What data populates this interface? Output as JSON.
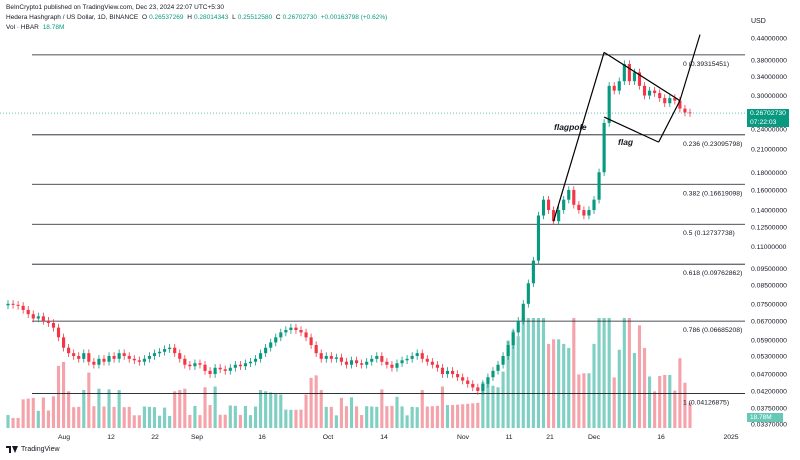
{
  "header": {
    "publisher": "BeInCrypto1 published on TradingView.com, Dec 23, 2024 22:07 UTC+5:30",
    "symbol": "Hedera Hashgraph / US Dollar, 1D, BINANCE",
    "ohlc": {
      "o_label": "O",
      "o": "0.26537269",
      "h_label": "H",
      "h": "0.28014343",
      "l_label": "L",
      "l": "0.25512580",
      "c_label": "C",
      "c": "0.26702730",
      "change": "+0.00163798 (+0.62%)"
    },
    "vol_label": "Vol · HBAR",
    "vol_value": "18.78M"
  },
  "axis": {
    "currency": "USD",
    "price_ticks": [
      "0.44000000",
      "0.38000000",
      "0.34000000",
      "0.30000000",
      "0.24000000",
      "0.21000000",
      "0.18000000",
      "0.16000000",
      "0.14000000",
      "0.12500000",
      "0.11000000",
      "0.09500000",
      "0.08500000",
      "0.07500000",
      "0.06700000",
      "0.05900000",
      "0.05300000",
      "0.04700000",
      "0.04200000",
      "0.03750000",
      "0.03370000"
    ],
    "date_ticks": [
      "Aug",
      "12",
      "22",
      "Sep",
      "16",
      "Oct",
      "14",
      "Nov",
      "11",
      "21",
      "Dec",
      "16",
      "2025"
    ]
  },
  "current_price": {
    "value": "0.26702730",
    "countdown": "07:22:03"
  },
  "volume_badge": "18.78M",
  "fib_levels": [
    {
      "label": "0 (0.39315451)",
      "price": 0.39315451
    },
    {
      "label": "0.236 (0.23095798)",
      "price": 0.23095798
    },
    {
      "label": "0.382 (0.16619098)",
      "price": 0.16619098
    },
    {
      "label": "0.5 (0.12737738)",
      "price": 0.12737738
    },
    {
      "label": "0.618 (0.09762862)",
      "price": 0.09762862
    },
    {
      "label": "0.786 (0.06685208)",
      "price": 0.06685208
    },
    {
      "label": "1 (0.04126875)",
      "price": 0.04126875
    }
  ],
  "annotations": {
    "flagpole": "flagpole",
    "flag": "flag"
  },
  "footer": {
    "brand": "TradingView"
  },
  "colors": {
    "up": "#089981",
    "down": "#f23645",
    "vol_up": "#7fcfc2",
    "vol_down": "#f5a3aa",
    "fib": "#131722",
    "current": "#089981"
  },
  "chart_data": {
    "type": "candlestick",
    "title": "Hedera Hashgraph / US Dollar, 1D, BINANCE",
    "y_scale": "log",
    "ylim": [
      0.0337,
      0.44
    ],
    "x_ticks": [
      "Aug",
      "12",
      "22",
      "Sep",
      "16",
      "Oct",
      "14",
      "Nov",
      "11",
      "21",
      "Dec",
      "16",
      "2025"
    ],
    "series": [
      {
        "name": "HBAR/USD",
        "close": [
          0.075,
          0.0745,
          0.074,
          0.072,
          0.07,
          0.068,
          0.069,
          0.067,
          0.066,
          0.064,
          0.06,
          0.056,
          0.054,
          0.053,
          0.052,
          0.054,
          0.051,
          0.05,
          0.052,
          0.051,
          0.053,
          0.052,
          0.054,
          0.053,
          0.052,
          0.0515,
          0.051,
          0.052,
          0.053,
          0.054,
          0.0545,
          0.0555,
          0.056,
          0.054,
          0.052,
          0.05,
          0.0495,
          0.0505,
          0.05,
          0.048,
          0.047,
          0.049,
          0.0485,
          0.048,
          0.049,
          0.05,
          0.0495,
          0.0505,
          0.051,
          0.052,
          0.054,
          0.056,
          0.058,
          0.06,
          0.062,
          0.063,
          0.064,
          0.063,
          0.062,
          0.06,
          0.057,
          0.054,
          0.052,
          0.053,
          0.052,
          0.0525,
          0.051,
          0.05,
          0.0515,
          0.0505,
          0.05,
          0.051,
          0.052,
          0.053,
          0.051,
          0.05,
          0.049,
          0.0505,
          0.0515,
          0.052,
          0.053,
          0.054,
          0.052,
          0.051,
          0.05,
          0.049,
          0.047,
          0.048,
          0.047,
          0.046,
          0.045,
          0.044,
          0.043,
          0.042,
          0.044,
          0.046,
          0.048,
          0.05,
          0.053,
          0.057,
          0.062,
          0.067,
          0.075,
          0.086,
          0.1,
          0.135,
          0.15,
          0.14,
          0.13,
          0.14,
          0.15,
          0.16,
          0.145,
          0.14,
          0.135,
          0.14,
          0.15,
          0.18,
          0.25,
          0.32,
          0.31,
          0.33,
          0.37,
          0.33,
          0.35,
          0.32,
          0.3,
          0.31,
          0.305,
          0.295,
          0.285,
          0.295,
          0.29,
          0.275,
          0.268,
          0.267
        ]
      }
    ],
    "volume": {
      "name": "Vol · HBAR",
      "last": "18.78M"
    }
  }
}
